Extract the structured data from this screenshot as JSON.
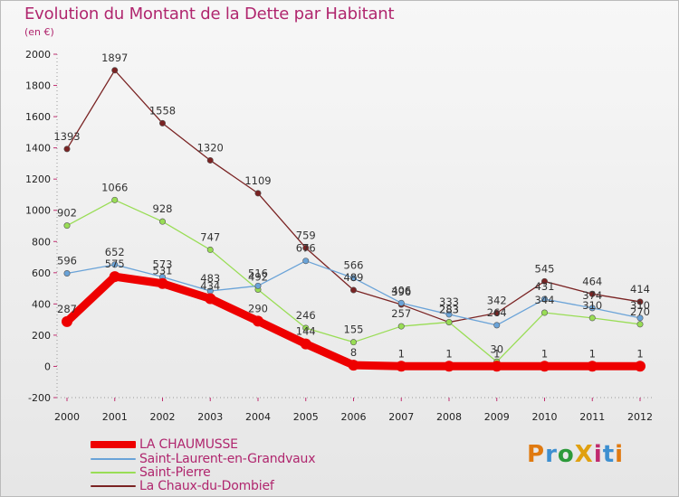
{
  "title": "Evolution du Montant de la Dette par Habitant",
  "subtitle": "(en €)",
  "logo": "ProXiti",
  "chart_data": {
    "type": "line",
    "title": "Evolution du Montant de la Dette par Habitant",
    "subtitle": "(en €)",
    "x": [
      "2000",
      "2001",
      "2002",
      "2003",
      "2004",
      "2005",
      "2006",
      "2007",
      "2008",
      "2009",
      "2010",
      "2011",
      "2012"
    ],
    "ylim": [
      -200,
      2000
    ],
    "yticks": [
      -200,
      0,
      200,
      400,
      600,
      800,
      1000,
      1200,
      1400,
      1600,
      1800,
      2000
    ],
    "grid": false,
    "legend_position": "bottom-left",
    "series": [
      {
        "name": "LA CHAUMUSSE",
        "color": "#ee0000",
        "values": [
          287,
          575,
          531,
          434,
          290,
          144,
          8,
          1,
          1,
          1,
          1,
          1,
          1
        ],
        "labels": [
          "287",
          "575",
          "531",
          "434",
          "290",
          "144",
          "8",
          "1",
          "1",
          "1",
          "1",
          "1",
          "1"
        ]
      },
      {
        "name": "Saint-Laurent-en-Grandvaux",
        "color": "#6aa3d8",
        "values": [
          596,
          652,
          573,
          483,
          516,
          676,
          566,
          406,
          333,
          264,
          431,
          374,
          310
        ],
        "labels": [
          "596",
          "652",
          "573",
          "483",
          "516",
          "676",
          "566",
          "406",
          "333",
          "264",
          "431",
          "374",
          "310"
        ]
      },
      {
        "name": "Saint-Pierre",
        "color": "#99dd55",
        "values": [
          902,
          1066,
          928,
          747,
          492,
          246,
          155,
          257,
          283,
          30,
          344,
          310,
          270
        ],
        "labels": [
          "902",
          "1066",
          "928",
          "747",
          "492",
          "246",
          "155",
          "257",
          "283",
          "30",
          "344",
          "310",
          "270"
        ]
      },
      {
        "name": "La Chaux-du-Dombief",
        "color": "#7a2323",
        "values": [
          1393,
          1897,
          1558,
          1320,
          1109,
          759,
          489,
          396,
          283,
          342,
          545,
          464,
          414
        ],
        "labels": [
          "1393",
          "1897",
          "1558",
          "1320",
          "1109",
          "759",
          "489",
          "396",
          "283",
          "342",
          "545",
          "464",
          "414"
        ]
      }
    ]
  },
  "legend": [
    {
      "label": "LA CHAUMUSSE",
      "color": "#ee0000"
    },
    {
      "label": "Saint-Laurent-en-Grandvaux",
      "color": "#6aa3d8"
    },
    {
      "label": "Saint-Pierre",
      "color": "#99dd55"
    },
    {
      "label": "La Chaux-du-Dombief",
      "color": "#7a2323"
    }
  ]
}
